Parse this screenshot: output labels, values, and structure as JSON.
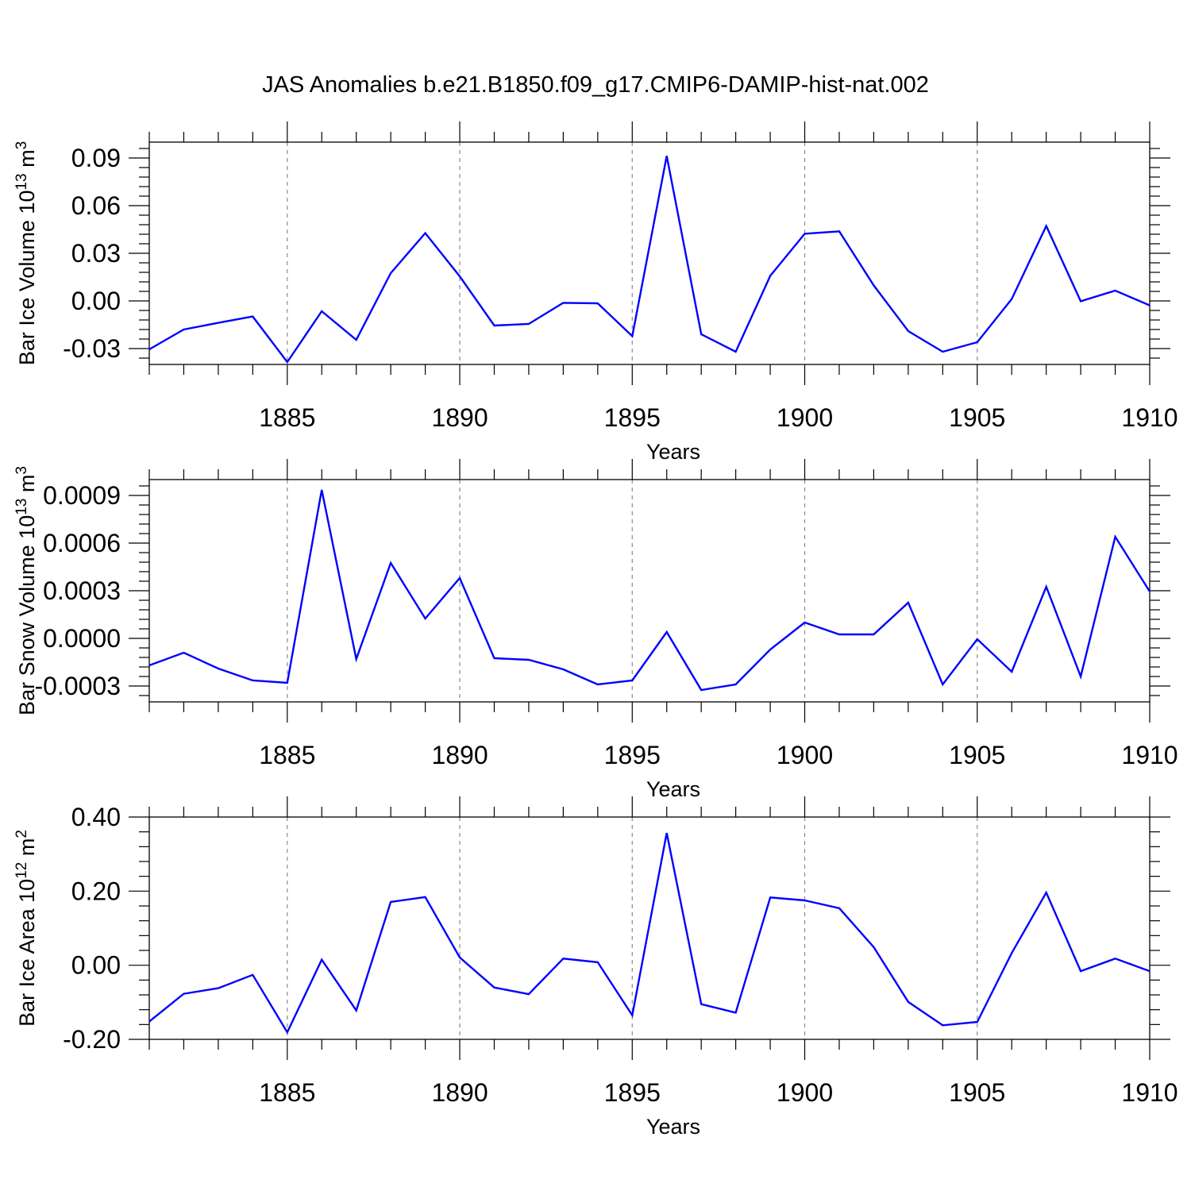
{
  "title": "JAS Anomalies b.e21.B1850.f09_g17.CMIP6-DAMIP-hist-nat.002",
  "line_color": "#0000ff",
  "chart_data": [
    {
      "type": "line",
      "xlabel": "Years",
      "ylabel": {
        "text": "Bar Ice Volume 10",
        "sup": "13",
        "unit": " m",
        "unit_sup": "3"
      },
      "xlim": [
        1881,
        1910
      ],
      "ylim": [
        -0.04,
        0.1
      ],
      "x_ticks": [
        1885,
        1890,
        1895,
        1900,
        1905,
        1910
      ],
      "y_ticks": [
        -0.03,
        0.0,
        0.03,
        0.06,
        0.09
      ],
      "y_tick_labels": [
        "-0.03",
        "0.00",
        "0.03",
        "0.06",
        "0.09"
      ],
      "grid_x": [
        1885,
        1890,
        1895,
        1900,
        1905
      ],
      "x": [
        1881,
        1882,
        1883,
        1884,
        1885,
        1886,
        1887,
        1888,
        1889,
        1890,
        1891,
        1892,
        1893,
        1894,
        1895,
        1896,
        1897,
        1898,
        1899,
        1900,
        1901,
        1902,
        1903,
        1904,
        1905,
        1906,
        1907,
        1908,
        1909,
        1910
      ],
      "values": [
        -0.0305,
        -0.018,
        -0.0138,
        -0.0098,
        -0.0385,
        -0.0065,
        -0.0245,
        0.0175,
        0.0427,
        0.0155,
        -0.0155,
        -0.0145,
        -0.0012,
        -0.0015,
        -0.0222,
        0.0913,
        -0.021,
        -0.032,
        0.0158,
        0.0423,
        0.0438,
        0.0098,
        -0.019,
        -0.032,
        -0.026,
        0.0012,
        0.0472,
        -0.0002,
        0.0065,
        -0.0028
      ]
    },
    {
      "type": "line",
      "xlabel": "Years",
      "ylabel": {
        "text": "Bar Snow Volume 10",
        "sup": "13",
        "unit": " m",
        "unit_sup": "3"
      },
      "xlim": [
        1881,
        1910
      ],
      "ylim": [
        -0.0004,
        0.001
      ],
      "x_ticks": [
        1885,
        1890,
        1895,
        1900,
        1905,
        1910
      ],
      "y_ticks": [
        -0.0003,
        0.0,
        0.0003,
        0.0006,
        0.0009
      ],
      "y_tick_labels": [
        "-0.0003",
        "0.0000",
        "0.0003",
        "0.0006",
        "0.0009"
      ],
      "grid_x": [
        1885,
        1890,
        1895,
        1900,
        1905
      ],
      "x": [
        1881,
        1882,
        1883,
        1884,
        1885,
        1886,
        1887,
        1888,
        1889,
        1890,
        1891,
        1892,
        1893,
        1894,
        1895,
        1896,
        1897,
        1898,
        1899,
        1900,
        1901,
        1902,
        1903,
        1904,
        1905,
        1906,
        1907,
        1908,
        1909,
        1910
      ],
      "values": [
        -0.00017,
        -9e-05,
        -0.00019,
        -0.000265,
        -0.00028,
        0.000935,
        -0.00013,
        0.000475,
        0.000125,
        0.00038,
        -0.000125,
        -0.000135,
        -0.000195,
        -0.00029,
        -0.000265,
        4e-05,
        -0.000325,
        -0.00029,
        -7e-05,
        0.0001,
        2.5e-05,
        2.5e-05,
        0.000225,
        -0.00029,
        -5e-06,
        -0.00021,
        0.000325,
        -0.00024,
        0.00064,
        0.000295
      ]
    },
    {
      "type": "line",
      "xlabel": "Years",
      "ylabel": {
        "text": "Bar Ice Area 10",
        "sup": "12",
        "unit": " m",
        "unit_sup": "2"
      },
      "xlim": [
        1881,
        1910
      ],
      "ylim": [
        -0.2,
        0.4
      ],
      "x_ticks": [
        1885,
        1890,
        1895,
        1900,
        1905,
        1910
      ],
      "y_ticks": [
        -0.2,
        0.0,
        0.2,
        0.4
      ],
      "y_tick_labels": [
        "-0.20",
        "0.00",
        "0.20",
        "0.40"
      ],
      "grid_x": [
        1885,
        1890,
        1895,
        1900,
        1905
      ],
      "x": [
        1881,
        1882,
        1883,
        1884,
        1885,
        1886,
        1887,
        1888,
        1889,
        1890,
        1891,
        1892,
        1893,
        1894,
        1895,
        1896,
        1897,
        1898,
        1899,
        1900,
        1901,
        1902,
        1903,
        1904,
        1905,
        1906,
        1907,
        1908,
        1909,
        1910
      ],
      "values": [
        -0.152,
        -0.077,
        -0.062,
        -0.026,
        -0.181,
        0.015,
        -0.122,
        0.171,
        0.184,
        0.021,
        -0.06,
        -0.078,
        0.018,
        0.008,
        -0.135,
        0.357,
        -0.105,
        -0.128,
        0.183,
        0.175,
        0.154,
        0.049,
        -0.099,
        -0.162,
        -0.153,
        0.033,
        0.196,
        -0.016,
        0.018,
        -0.016
      ]
    }
  ]
}
